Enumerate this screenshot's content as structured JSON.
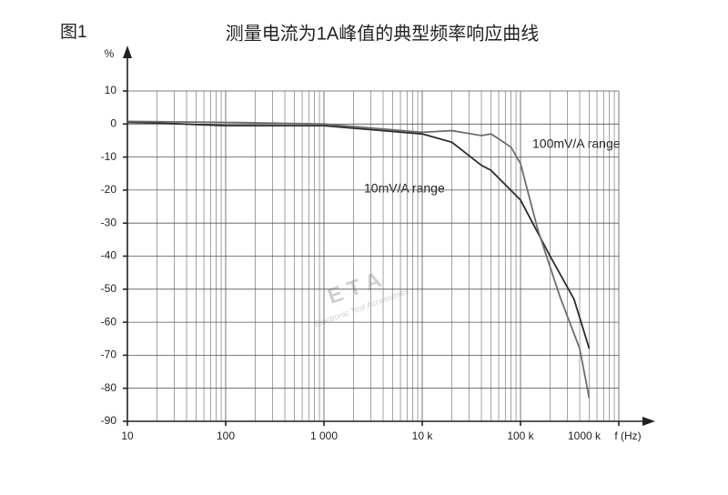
{
  "chart_data": {
    "type": "line",
    "figure_label": "图1",
    "title": "测量电流为1A峰值的典型频率响应曲线",
    "y_label": "%",
    "x_label": "f (Hz)",
    "watermark": "E T A",
    "watermark_subtitle": "Electronic Test Accessories",
    "xscale": "log",
    "grid": true,
    "xlim": [
      10,
      1000000
    ],
    "xticks": [
      10,
      100,
      {
        "value": 1000,
        "label": "1 000"
      },
      {
        "value": 10000,
        "label": "10 k"
      },
      {
        "value": 100000,
        "label": "100 k"
      },
      {
        "value": 1000000,
        "label": "1000 k"
      }
    ],
    "ylim": [
      -90,
      10
    ],
    "yticks": [
      10,
      0,
      -10,
      -20,
      -30,
      -40,
      -50,
      -60,
      -70,
      -80,
      -90
    ],
    "series": [
      {
        "name": "10mV/A range",
        "color": "#2b2b2b",
        "x": [
          10,
          20,
          100,
          1000,
          10000,
          20000,
          40000,
          50000,
          100000,
          200000,
          350000,
          500000
        ],
        "values": [
          0.5,
          0.3,
          -0.5,
          -0.5,
          -3,
          -5.5,
          -12.5,
          -14,
          -23,
          -40,
          -53,
          -68
        ]
      },
      {
        "name": "100mV/A range",
        "color": "#6e6e6e",
        "x": [
          10,
          100,
          1000,
          10000,
          20000,
          40000,
          50000,
          60000,
          80000,
          100000,
          150000,
          250000,
          400000,
          500000
        ],
        "values": [
          0.8,
          0.5,
          0,
          -2.5,
          -2,
          -3.5,
          -3,
          -4.5,
          -7,
          -12,
          -32,
          -52,
          -68,
          -83
        ]
      }
    ]
  }
}
